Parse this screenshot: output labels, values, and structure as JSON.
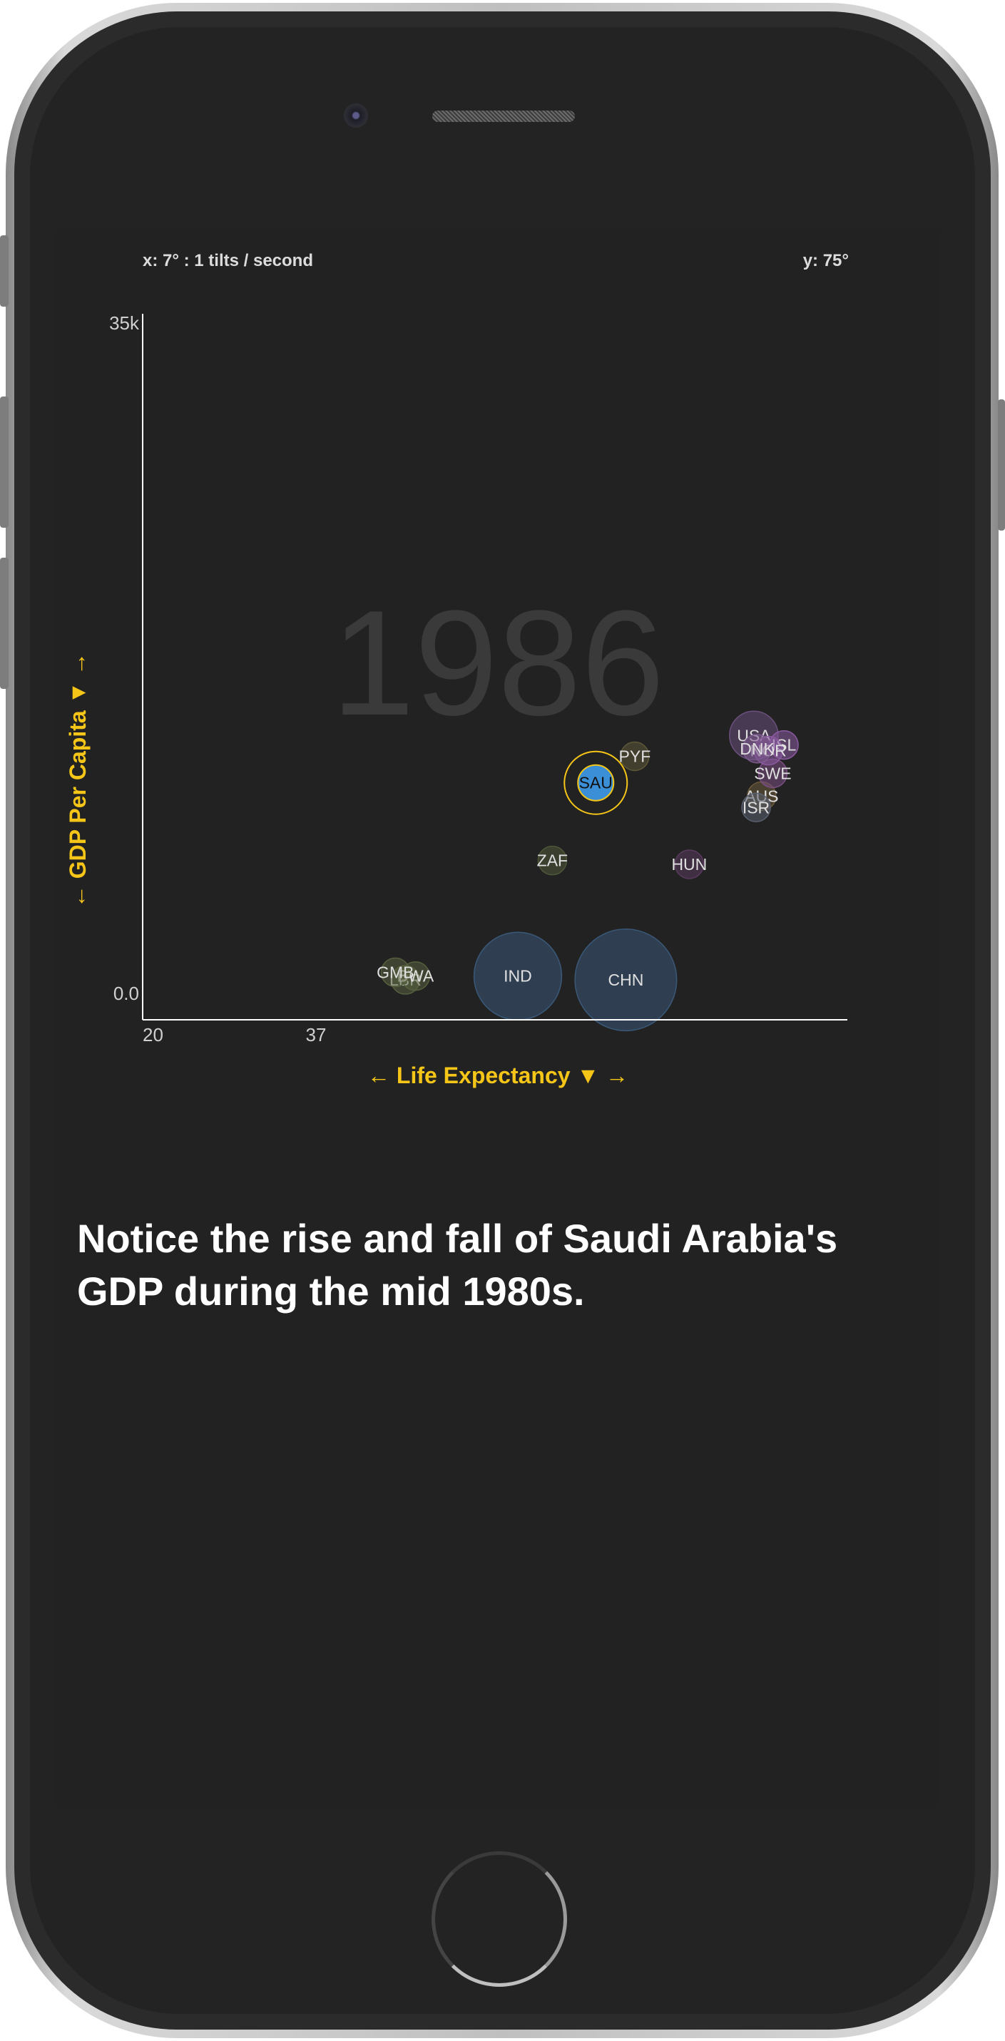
{
  "tilt": {
    "x_readout": "x: 7° : 1 tilts / second",
    "y_readout": "y: 75°"
  },
  "axes": {
    "x_label": "← Life Expectancy ▼ →",
    "y_label": "← GDP Per Capita ▼ →"
  },
  "caption": "Notice the rise and fall of Saudi Arabia's GDP during the mid 1980s.",
  "colors": {
    "accent": "#f5c518",
    "screen_bg": "#222222",
    "axis": "#ffffff",
    "year_text": "#3a3a3a",
    "highlight_fill": "#3b8fd6"
  },
  "chart_data": {
    "type": "scatter",
    "year": "1986",
    "xlabel": "← Life Expectancy ▼ →",
    "ylabel": "← GDP Per Capita ▼ →",
    "xlim": [
      20,
      83.3
    ],
    "ylim": [
      0,
      35000
    ],
    "x_ticks": [
      "20",
      "37"
    ],
    "y_ticks": [
      "35k",
      "0.0"
    ],
    "highlight": "SAU",
    "points": [
      {
        "code": "USA",
        "x": 74.9,
        "y": 13500,
        "pop": 240,
        "color": "#6a4f7d"
      },
      {
        "code": "ISL",
        "x": 77.6,
        "y": 13000,
        "pop": 18,
        "color": "#8a5aa0"
      },
      {
        "code": "DNK",
        "x": 75.2,
        "y": 12800,
        "pop": 6,
        "color": "#7d5a8e"
      },
      {
        "code": "NOR",
        "x": 76.2,
        "y": 12700,
        "pop": 11,
        "color": "#8a5aa0"
      },
      {
        "code": "SWE",
        "x": 76.6,
        "y": 11500,
        "pop": 14,
        "color": "#7a4e82"
      },
      {
        "code": "AUS",
        "x": 75.6,
        "y": 10300,
        "pop": 32,
        "color": "#6c5a3a"
      },
      {
        "code": "ISR",
        "x": 75.1,
        "y": 9700,
        "pop": 28,
        "color": "#5a6070"
      },
      {
        "code": "PYF",
        "x": 64.2,
        "y": 12400,
        "pop": 20,
        "color": "#5e5838"
      },
      {
        "code": "SAU",
        "x": 60.7,
        "y": 11000,
        "pop": 30,
        "color": "#3b8fd6"
      },
      {
        "code": "ZAF",
        "x": 56.8,
        "y": 6900,
        "pop": 38,
        "color": "#4e5838"
      },
      {
        "code": "HUN",
        "x": 69.1,
        "y": 6700,
        "pop": 31,
        "color": "#5a3a5e"
      },
      {
        "code": "GMB",
        "x": 42.7,
        "y": 1000,
        "pop": 14,
        "color": "#56603e"
      },
      {
        "code": "BWA",
        "x": 44.5,
        "y": 800,
        "pop": 16,
        "color": "#56603e"
      },
      {
        "code": "LBR",
        "x": 43.6,
        "y": 600,
        "pop": 18,
        "color": "#56603e"
      },
      {
        "code": "IND",
        "x": 53.7,
        "y": 800,
        "pop": 780,
        "color": "#3a5878"
      },
      {
        "code": "CHN",
        "x": 63.4,
        "y": 600,
        "pop": 1050,
        "color": "#3a5878"
      }
    ]
  }
}
